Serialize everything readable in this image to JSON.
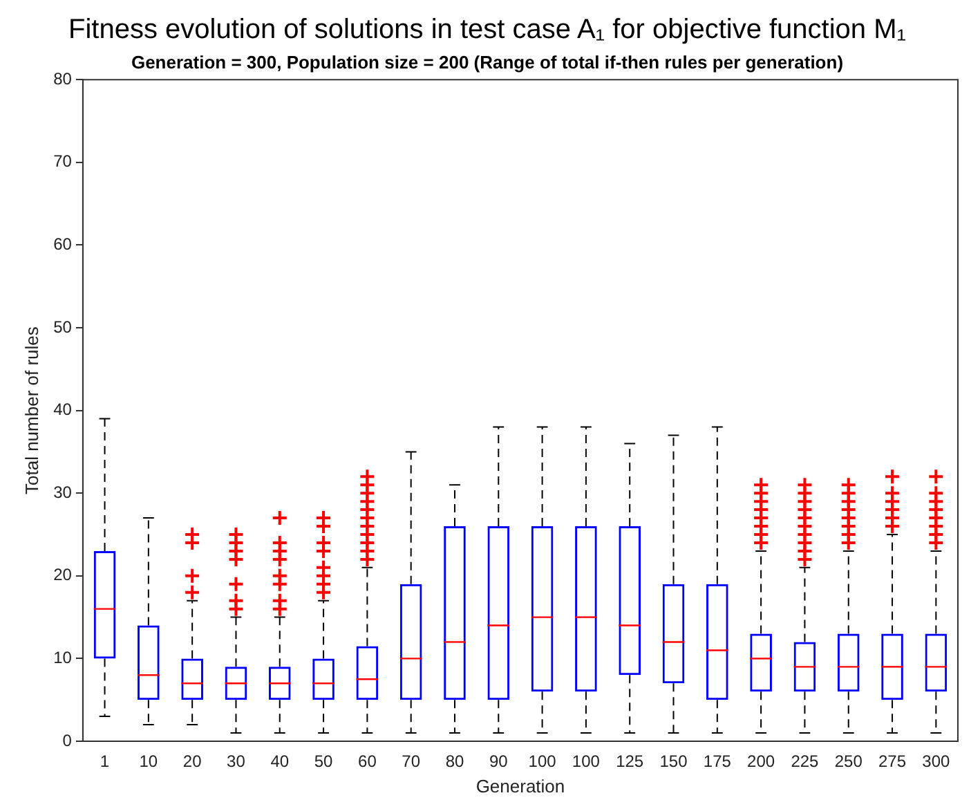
{
  "chart_data": {
    "type": "box",
    "title": "Fitness evolution of solutions in test case A₁ for objective function M₁",
    "subtitle": "Generation = 300, Population size = 200 (Range of total if-then rules per generation)",
    "xlabel": "Generation",
    "ylabel": "Total number of rules",
    "categories": [
      "1",
      "10",
      "20",
      "30",
      "40",
      "50",
      "60",
      "70",
      "80",
      "90",
      "100",
      "100",
      "125",
      "150",
      "175",
      "200",
      "225",
      "250",
      "275",
      "300"
    ],
    "ylim": [
      0,
      80
    ],
    "yticks": [
      0,
      10,
      20,
      30,
      40,
      50,
      60,
      70,
      80
    ],
    "grid": false,
    "legend": false,
    "series": [
      {
        "color": "#0000ff",
        "boxes": [
          {
            "low": 3,
            "q1": 10,
            "median": 16,
            "q3": 23,
            "high": 39
          },
          {
            "low": 2,
            "q1": 5,
            "median": 8,
            "q3": 14,
            "high": 27
          },
          {
            "low": 2,
            "q1": 5,
            "median": 7,
            "q3": 10,
            "high": 17,
            "outliers": [
              18,
              20,
              24,
              25
            ]
          },
          {
            "low": 1,
            "q1": 5,
            "median": 7,
            "q3": 9,
            "high": 15,
            "outliers": [
              16,
              17,
              19,
              22,
              23,
              24,
              25
            ]
          },
          {
            "low": 1,
            "q1": 5,
            "median": 7,
            "q3": 9,
            "high": 15,
            "outliers": [
              16,
              17,
              19,
              20,
              22,
              23,
              24,
              27
            ]
          },
          {
            "low": 1,
            "q1": 5,
            "median": 7,
            "q3": 10,
            "high": 17,
            "outliers": [
              18,
              19,
              20,
              21,
              23,
              24,
              26,
              27
            ]
          },
          {
            "low": 1,
            "q1": 5,
            "median": 7.5,
            "q3": 11.5,
            "high": 21,
            "outliers": [
              22,
              23,
              24,
              25,
              26,
              27,
              28,
              29,
              30,
              31,
              32
            ]
          },
          {
            "low": 1,
            "q1": 5,
            "median": 10,
            "q3": 19,
            "high": 35
          },
          {
            "low": 1,
            "q1": 5,
            "median": 12,
            "q3": 26,
            "high": 31
          },
          {
            "low": 1,
            "q1": 5,
            "median": 14,
            "q3": 26,
            "high": 38
          },
          {
            "low": 1,
            "q1": 6,
            "median": 15,
            "q3": 26,
            "high": 38
          },
          {
            "low": 1,
            "q1": 6,
            "median": 15,
            "q3": 26,
            "high": 38
          },
          {
            "low": 1,
            "q1": 8,
            "median": 14,
            "q3": 26,
            "high": 36
          },
          {
            "low": 1,
            "q1": 7,
            "median": 12,
            "q3": 19,
            "high": 37
          },
          {
            "low": 1,
            "q1": 5,
            "median": 11,
            "q3": 19,
            "high": 38
          },
          {
            "low": 1,
            "q1": 6,
            "median": 10,
            "q3": 13,
            "high": 23,
            "outliers": [
              24,
              25,
              26,
              27,
              28,
              29,
              30,
              31
            ]
          },
          {
            "low": 1,
            "q1": 6,
            "median": 9,
            "q3": 12,
            "high": 21,
            "outliers": [
              22,
              23,
              24,
              25,
              26,
              27,
              28,
              29,
              30,
              31
            ]
          },
          {
            "low": 1,
            "q1": 6,
            "median": 9,
            "q3": 13,
            "high": 23,
            "outliers": [
              24,
              25,
              26,
              27,
              28,
              29,
              30,
              31
            ]
          },
          {
            "low": 1,
            "q1": 5,
            "median": 9,
            "q3": 13,
            "high": 25,
            "outliers": [
              26,
              27,
              28,
              29,
              30,
              32
            ]
          },
          {
            "low": 1,
            "q1": 6,
            "median": 9,
            "q3": 13,
            "high": 23,
            "outliers": [
              24,
              25,
              26,
              27,
              28,
              29,
              30,
              32
            ]
          }
        ]
      }
    ]
  }
}
